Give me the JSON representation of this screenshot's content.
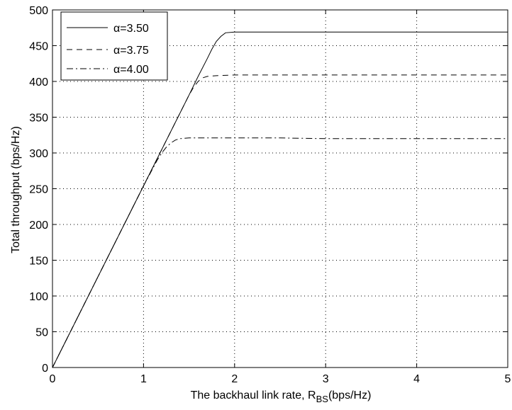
{
  "chart_data": {
    "type": "line",
    "title": "",
    "xlabel": "The backhaul link rate, R",
    "xlabel_subscript": "BS",
    "xlabel_unit": "(bps/Hz)",
    "ylabel": "Total throughput (bps/Hz)",
    "xlim": [
      0,
      5
    ],
    "ylim": [
      0,
      500
    ],
    "xticks": [
      0,
      1,
      2,
      3,
      4,
      5
    ],
    "yticks": [
      0,
      50,
      100,
      150,
      200,
      250,
      300,
      350,
      400,
      450,
      500
    ],
    "grid": true,
    "legend_position": "top-left",
    "series": [
      {
        "name": "α=3.50",
        "style": "solid",
        "x": [
          0,
          0.5,
          1.0,
          1.5,
          1.6,
          1.7,
          1.75,
          1.8,
          1.85,
          1.9,
          2.0,
          2.5,
          3.0,
          3.5,
          4.0,
          4.5,
          5.0
        ],
        "y": [
          0,
          127,
          254,
          381,
          407,
          432,
          445,
          456,
          463,
          468,
          469,
          469,
          469,
          469,
          469,
          469,
          469
        ]
      },
      {
        "name": "α=3.75",
        "style": "dashed",
        "x": [
          0,
          0.5,
          1.0,
          1.5,
          1.55,
          1.6,
          1.65,
          1.7,
          1.8,
          2.0,
          2.5,
          3.0,
          3.5,
          4.0,
          4.5,
          5.0
        ],
        "y": [
          0,
          127,
          254,
          381,
          392,
          400,
          405,
          407,
          408,
          409,
          409,
          409,
          409,
          409,
          409,
          409
        ]
      },
      {
        "name": "α=4.00",
        "style": "dashdot",
        "x": [
          0,
          0.5,
          1.0,
          1.15,
          1.2,
          1.25,
          1.3,
          1.35,
          1.4,
          1.5,
          2.0,
          2.5,
          3.0,
          3.5,
          4.0,
          4.5,
          5.0
        ],
        "y": [
          0,
          127,
          254,
          290,
          300,
          308,
          314,
          318,
          320,
          321,
          321,
          321,
          320,
          320,
          320,
          320,
          320
        ]
      }
    ]
  }
}
